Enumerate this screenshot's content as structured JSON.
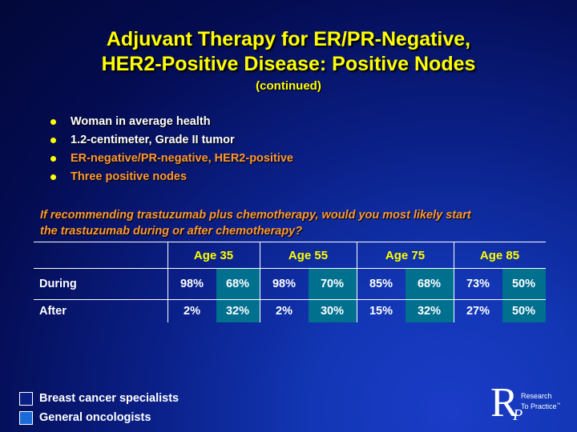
{
  "slide": {
    "title_line1": "Adjuvant Therapy for ER/PR-Negative,",
    "title_line2": "HER2-Positive Disease: Positive Nodes",
    "subtitle": "(continued)"
  },
  "bullets": [
    {
      "text": "Woman in average health",
      "color": "#ffffff"
    },
    {
      "text": "1.2-centimeter, Grade II tumor",
      "color": "#ffffff"
    },
    {
      "text": "ER-negative/PR-negative, HER2-positive",
      "color": "#ff9933"
    },
    {
      "text": "Three positive nodes",
      "color": "#ff9933"
    }
  ],
  "question_line1": "If recommending trastuzumab plus chemotherapy, would you most likely start",
  "question_line2": "the trastuzumab during or after chemotherapy?",
  "table": {
    "age_groups": [
      "Age 35",
      "Age 55",
      "Age 75",
      "Age 85"
    ],
    "rows": [
      {
        "label": "During",
        "values": [
          "98%",
          "68%",
          "98%",
          "70%",
          "85%",
          "68%",
          "73%",
          "50%"
        ]
      },
      {
        "label": "After",
        "values": [
          "2%",
          "32%",
          "2%",
          "30%",
          "15%",
          "32%",
          "27%",
          "50%"
        ]
      }
    ]
  },
  "legend": [
    {
      "label": "Breast cancer specialists",
      "color": "#0a1f86"
    },
    {
      "label": "General oncologists",
      "color": "#1a6ad8"
    }
  ],
  "logo": {
    "letter_r": "R",
    "letter_p": "P",
    "line1": "Research",
    "line2": "To Practice",
    "mark": "™"
  },
  "colors": {
    "title": "#ffff00",
    "accent": "#ff9933",
    "cell_highlight": "#00708f"
  }
}
